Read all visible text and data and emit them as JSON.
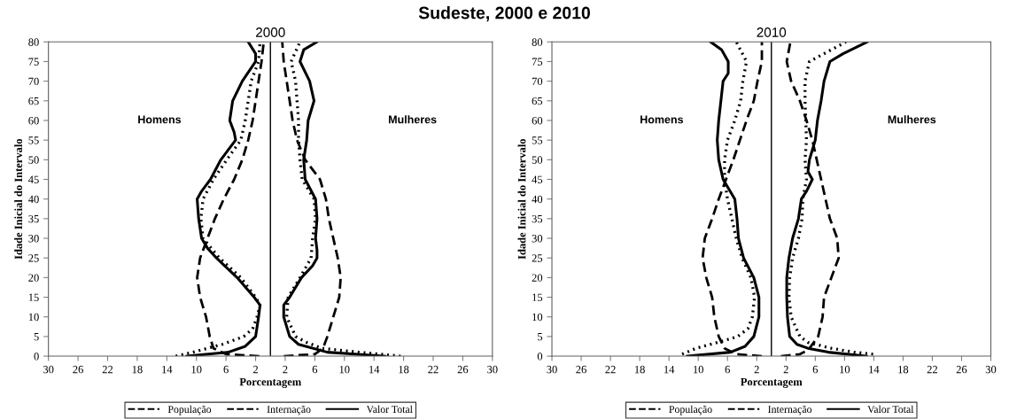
{
  "chart_data": [
    {
      "type": "line",
      "title": "2000",
      "subtitle": "Sudeste, 2000 e 2010",
      "xlabel": "Porcentagem",
      "ylabel": "Idade Inicial do Intervalo",
      "annotations": [
        "Homens",
        "Mulheres"
      ],
      "xlim": [
        -30,
        30
      ],
      "xticks": [
        {
          "value": -30,
          "label": "30"
        },
        {
          "value": -26,
          "label": "26"
        },
        {
          "value": -22,
          "label": "22"
        },
        {
          "value": -18,
          "label": "18"
        },
        {
          "value": -14,
          "label": "14"
        },
        {
          "value": -10,
          "label": "10"
        },
        {
          "value": -6,
          "label": "6"
        },
        {
          "value": -2,
          "label": "2"
        },
        2,
        6,
        10,
        14,
        18,
        22,
        26,
        30
      ],
      "ylim": [
        0,
        80
      ],
      "yticks": [
        0,
        5,
        10,
        15,
        20,
        25,
        30,
        35,
        40,
        45,
        50,
        55,
        60,
        65,
        70,
        75,
        80
      ],
      "ref_lines": [
        {
          "axis": "x",
          "value": 0,
          "color": "#000000"
        }
      ],
      "grid": false,
      "legend": "bottom",
      "marker": "none",
      "series": [
        {
          "name": "População",
          "color": "#000000",
          "line_style": "dashed",
          "x": [
            -1.5,
            -6,
            -7.7,
            -8.2,
            -8.7,
            -9.5,
            -9.9,
            -9.5,
            -8.5,
            -7.5,
            -6.3,
            -4.9,
            -3.8,
            -3,
            -2.4,
            -2,
            -1.6,
            -1.2,
            -0.9
          ],
          "values": [
            0,
            0.5,
            2,
            5,
            10,
            15,
            20,
            25,
            30,
            35,
            40,
            45,
            50,
            55,
            60,
            65,
            70,
            75,
            80
          ]
        },
        {
          "name": "Internação",
          "color": "#000000",
          "line_style": "dotted",
          "x": [
            -12.8,
            -10.5,
            -6.5,
            -3.6,
            -2.4,
            -1.8,
            -1.4,
            -2,
            -4,
            -6.9,
            -9.1,
            -9.4,
            -9.1,
            -7.7,
            -5.9,
            -4,
            -3.4,
            -3,
            -2.6,
            -1.6,
            -1.4
          ],
          "values": [
            0,
            1,
            3,
            5,
            7,
            10,
            13,
            15,
            20,
            25,
            30,
            35,
            40,
            45,
            50,
            55,
            60,
            65,
            70,
            75,
            80
          ]
        },
        {
          "name": "Valor Total",
          "color": "#000000",
          "line_style": "solid",
          "x": [
            -11.3,
            -5.7,
            -3.4,
            -2,
            -1.6,
            -1.4,
            -2.2,
            -4.5,
            -7.3,
            -8.5,
            -9.3,
            -9.7,
            -9.9,
            -9.3,
            -8.1,
            -6.7,
            -4.7,
            -4.9,
            -5.5,
            -5.1,
            -3.8,
            -2,
            -2,
            -3
          ],
          "values": [
            0,
            1,
            2.5,
            5,
            10,
            13,
            15,
            20,
            25,
            27.5,
            30,
            35,
            40,
            42,
            45,
            50,
            55,
            57,
            60,
            65,
            70,
            75,
            77,
            80
          ]
        },
        {
          "name": "População",
          "color": "#000000",
          "line_style": "dashed",
          "x": [
            1.8,
            6,
            7.1,
            7.7,
            8.5,
            9.3,
            9.5,
            9.1,
            8.5,
            7.9,
            7.5,
            6.7,
            4.7,
            3.6,
            3,
            2.6,
            2.2,
            1.8,
            1.6
          ],
          "values": [
            0,
            0.5,
            2,
            5,
            10,
            15,
            20,
            25,
            30,
            35,
            40,
            45,
            50,
            55,
            60,
            65,
            70,
            75,
            80
          ]
        },
        {
          "name": "Internação",
          "color": "#000000",
          "line_style": "dotted",
          "x": [
            17.6,
            12,
            6.9,
            4.9,
            3.4,
            2.2,
            2.4,
            4,
            5.5,
            5.7,
            6.1,
            5.9,
            4.3,
            4,
            3.8,
            3.8,
            3.6,
            3.4,
            2.8,
            4
          ],
          "values": [
            0,
            1,
            2,
            3.5,
            5,
            10,
            15,
            20,
            25,
            30,
            35,
            40,
            45,
            50,
            55,
            60,
            65,
            70,
            75,
            80
          ]
        },
        {
          "name": "Valor Total",
          "color": "#000000",
          "line_style": "solid",
          "x": [
            15.5,
            7.7,
            3.8,
            2.6,
            1.8,
            1.8,
            2.6,
            4.2,
            5.7,
            6.3,
            6.3,
            6.1,
            6.3,
            6.1,
            4.7,
            4.5,
            4.9,
            5.1,
            5.9,
            5.3,
            4,
            4.5,
            6.3
          ],
          "values": [
            0,
            1,
            3,
            5,
            10,
            13,
            15,
            20,
            23,
            25,
            27,
            30,
            35,
            40,
            45,
            50,
            55,
            60,
            65,
            70,
            75,
            78,
            80
          ]
        }
      ]
    },
    {
      "type": "line",
      "title": "2010",
      "xlabel": "Porcentagem",
      "ylabel": "Idade Inicial do Intervalo",
      "annotations": [
        "Homens",
        "Mulheres"
      ],
      "xlim": [
        -30,
        30
      ],
      "xticks": [
        {
          "value": -30,
          "label": "30"
        },
        {
          "value": -26,
          "label": "26"
        },
        {
          "value": -22,
          "label": "22"
        },
        {
          "value": -18,
          "label": "18"
        },
        {
          "value": -14,
          "label": "14"
        },
        {
          "value": -10,
          "label": "10"
        },
        {
          "value": -6,
          "label": "6"
        },
        {
          "value": -2,
          "label": "2"
        },
        2,
        6,
        10,
        14,
        18,
        22,
        26,
        30
      ],
      "ylim": [
        0,
        80
      ],
      "yticks": [
        0,
        5,
        10,
        15,
        20,
        25,
        30,
        35,
        40,
        45,
        50,
        55,
        60,
        65,
        70,
        75,
        80
      ],
      "ref_lines": [
        {
          "axis": "x",
          "value": 0,
          "color": "#000000"
        }
      ],
      "grid": false,
      "legend": "bottom",
      "marker": "none",
      "series": [
        {
          "name": "População",
          "color": "#000000",
          "line_style": "dashed",
          "x": [
            -1.3,
            -4.8,
            -6.4,
            -7.2,
            -7.8,
            -8.1,
            -8.9,
            -9.4,
            -9.1,
            -8.1,
            -7.2,
            -6.2,
            -5.2,
            -4.3,
            -3.4,
            -2.4,
            -1.9,
            -1.3,
            -1.3
          ],
          "values": [
            0,
            0.5,
            2,
            5,
            10,
            15,
            20,
            25,
            30,
            35,
            40,
            45,
            50,
            55,
            60,
            65,
            70,
            75,
            80
          ]
        },
        {
          "name": "Internação",
          "color": "#000000",
          "line_style": "dotted",
          "x": [
            -12.2,
            -10.3,
            -6.4,
            -4.6,
            -3.2,
            -2.6,
            -2.3,
            -2.8,
            -4,
            -4.8,
            -5.4,
            -6,
            -6.4,
            -6.4,
            -6,
            -5,
            -4.2,
            -3.9,
            -3.4,
            -4.8
          ],
          "values": [
            0.5,
            2,
            4,
            5,
            7,
            10,
            15,
            20,
            25,
            30,
            35,
            40,
            45,
            50,
            55,
            60,
            65,
            70,
            75,
            80
          ]
        },
        {
          "name": "Valor Total",
          "color": "#000000",
          "line_style": "solid",
          "x": [
            -11.5,
            -5.6,
            -3.6,
            -2.4,
            -1.7,
            -1.7,
            -2.4,
            -3.8,
            -4.5,
            -4.7,
            -5,
            -6.6,
            -7.2,
            -7.4,
            -7.2,
            -6.9,
            -6.6,
            -5.9,
            -5.9,
            -6.8,
            -8.3
          ],
          "values": [
            0,
            1,
            2.5,
            5,
            10,
            15,
            20,
            25,
            30,
            35,
            40,
            45,
            50,
            55,
            60,
            65,
            70,
            72,
            75,
            78,
            80
          ]
        },
        {
          "name": "População",
          "color": "#000000",
          "line_style": "dashed",
          "x": [
            1.3,
            3.9,
            5,
            6.4,
            7,
            7.2,
            8.2,
            9.2,
            9,
            8,
            7.4,
            6.8,
            6.2,
            5.6,
            4.8,
            3.9,
            2.7,
            2.1,
            2.6
          ],
          "values": [
            0,
            0.5,
            1.5,
            5,
            10,
            15,
            20,
            25,
            30,
            35,
            40,
            45,
            50,
            55,
            60,
            65,
            70,
            75,
            80
          ]
        },
        {
          "name": "Internação",
          "color": "#000000",
          "line_style": "dotted",
          "x": [
            13.9,
            11.3,
            8.2,
            5,
            3.9,
            2.7,
            2.4,
            2.5,
            2.9,
            3.7,
            4.2,
            4.3,
            4.8,
            4.6,
            4.8,
            4.7,
            4.6,
            4.6,
            5.2,
            10.2
          ],
          "values": [
            0.5,
            1,
            2,
            3.5,
            5,
            10,
            15,
            20,
            25,
            30,
            35,
            40,
            45,
            50,
            55,
            60,
            65,
            70,
            75,
            80
          ]
        },
        {
          "name": "Valor Total",
          "color": "#000000",
          "line_style": "solid",
          "x": [
            13,
            7.8,
            5,
            3.5,
            2.5,
            2.2,
            2.1,
            2.1,
            2.4,
            2.9,
            3.7,
            4.1,
            4.8,
            5.6,
            5,
            5.2,
            5.6,
            6,
            6.3,
            6.8,
            7.2,
            8,
            9.8,
            13.1
          ],
          "values": [
            0,
            1,
            2,
            3,
            5,
            10,
            15,
            20,
            25,
            30,
            35,
            40,
            42,
            45,
            47,
            50,
            52.5,
            55,
            60,
            65,
            70,
            75,
            77,
            80
          ]
        }
      ]
    }
  ]
}
